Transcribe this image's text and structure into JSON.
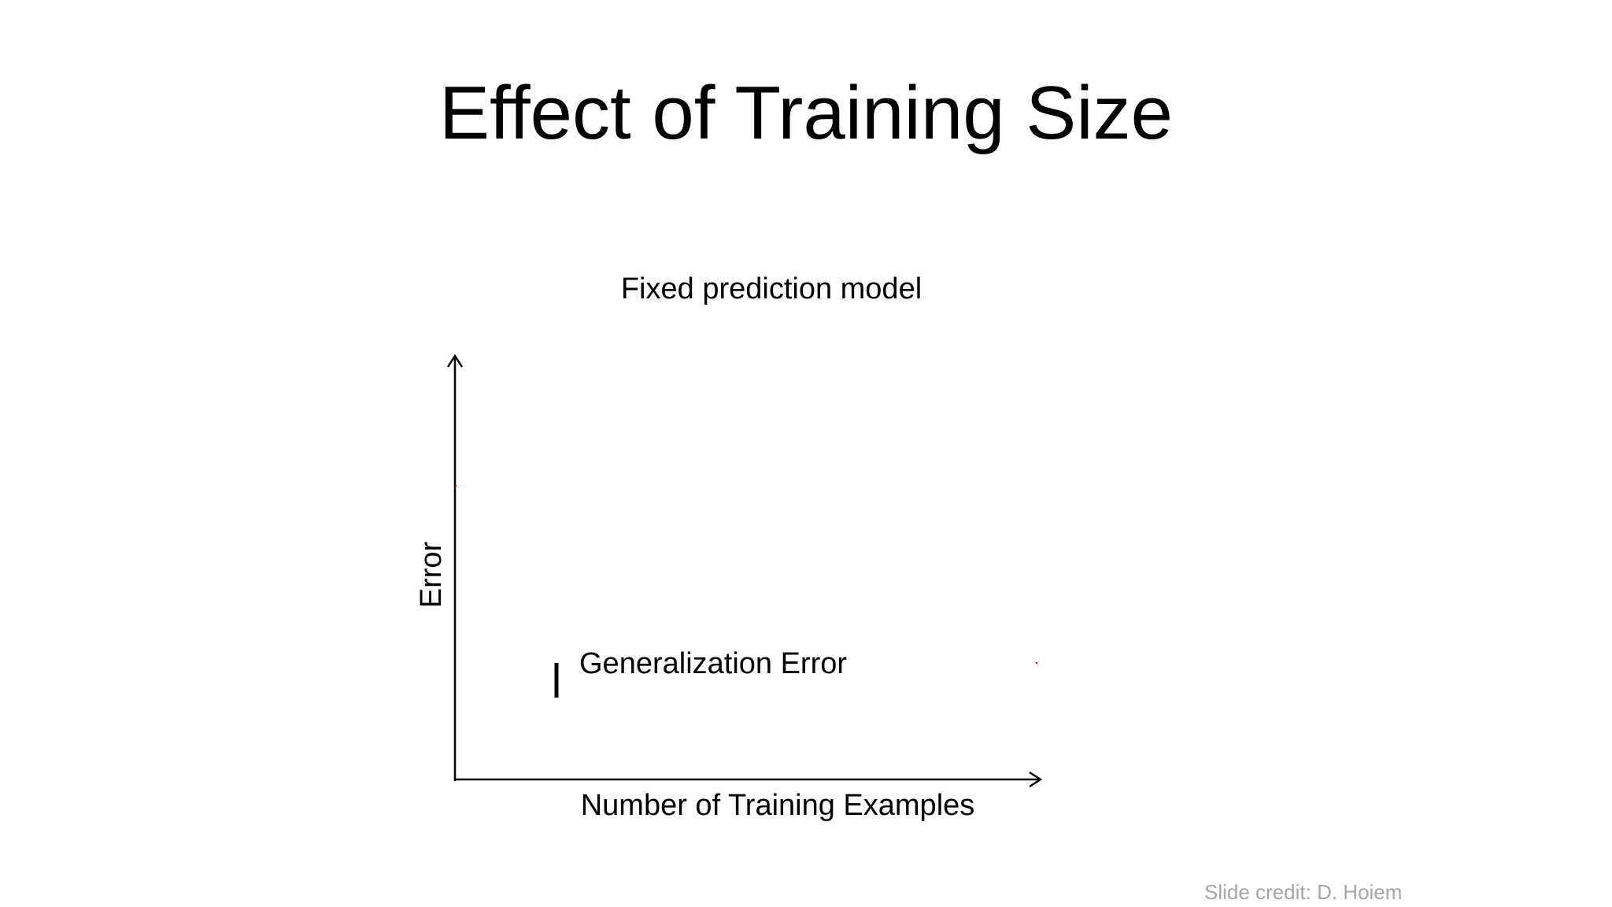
{
  "slide": {
    "title": "Effect of Training Size",
    "subtitle": "Fixed prediction model",
    "credit": "Slide credit: D. Hoiem"
  },
  "chart_data": {
    "type": "line",
    "xlabel": "Number of Training Examples",
    "ylabel": "Error",
    "annotations": [
      "Generalization Error"
    ],
    "series": [],
    "grid": false,
    "colors": {
      "axis": "#000000",
      "marker": "#c00000"
    }
  }
}
